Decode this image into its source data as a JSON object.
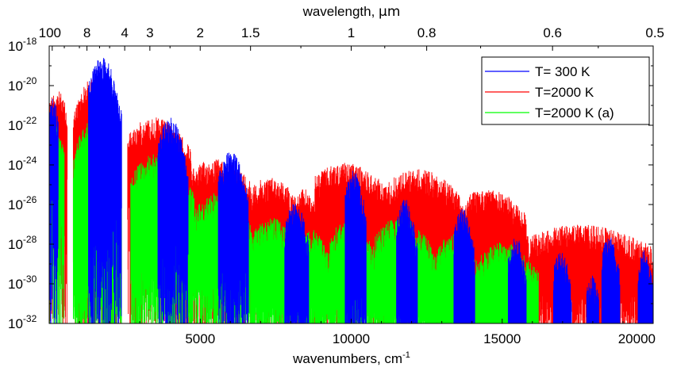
{
  "chart_data": {
    "type": "line",
    "xlabel": "wavenumbers, cm",
    "xlabel_superscript": "-1",
    "x2label_prefix": "wavelength, ",
    "x2label_unit": "μm",
    "xlim": [
      0,
      20000
    ],
    "ylim_exponent": [
      -32,
      -18
    ],
    "y_scale": "log",
    "x_ticks": [
      {
        "value": 5000,
        "label": "5000"
      },
      {
        "value": 10000,
        "label": "10000"
      },
      {
        "value": 15000,
        "label": "15000"
      },
      {
        "value": 20000,
        "label": "20000"
      }
    ],
    "x2_ticks": [
      {
        "wavelength": 100,
        "label": "100"
      },
      {
        "wavelength": 8,
        "label": "8"
      },
      {
        "wavelength": 4,
        "label": "4"
      },
      {
        "wavelength": 3,
        "label": "3"
      },
      {
        "wavelength": 2,
        "label": "2"
      },
      {
        "wavelength": 1.5,
        "label": "1.5"
      },
      {
        "wavelength": 1,
        "label": "1"
      },
      {
        "wavelength": 0.8,
        "label": "0.8"
      },
      {
        "wavelength": 0.6,
        "label": "0.6"
      },
      {
        "wavelength": 0.5,
        "label": "0.5"
      }
    ],
    "y_ticks": [
      {
        "exp": -18,
        "base": "10",
        "sup": "-18"
      },
      {
        "exp": -20,
        "base": "10",
        "sup": "-20"
      },
      {
        "exp": -22,
        "base": "10",
        "sup": "-22"
      },
      {
        "exp": -24,
        "base": "10",
        "sup": "-24"
      },
      {
        "exp": -26,
        "base": "10",
        "sup": "-26"
      },
      {
        "exp": -28,
        "base": "10",
        "sup": "-28"
      },
      {
        "exp": -30,
        "base": "10",
        "sup": "-30"
      },
      {
        "exp": -32,
        "base": "10",
        "sup": "-32"
      }
    ],
    "legend_position": "top-right",
    "series": [
      {
        "name": "T= 300 K",
        "color": "#0000ff",
        "bands": [
          [
            0,
            300,
            -20.6,
            -23.0
          ],
          [
            1300,
            2400,
            -18.5,
            -24.5
          ],
          [
            3600,
            4600,
            -21.6,
            -27.0
          ],
          [
            5600,
            6600,
            -23.3,
            -28.3
          ],
          [
            7800,
            8600,
            -25.8,
            -30.3
          ],
          [
            9800,
            10500,
            -24.2,
            -29.3
          ],
          [
            11500,
            12200,
            -25.7,
            -30.6
          ],
          [
            13400,
            14100,
            -26.2,
            -31.0
          ],
          [
            15200,
            15800,
            -27.6,
            -31.3
          ],
          [
            16700,
            17300,
            -28.4,
            -31.6
          ],
          [
            17800,
            18200,
            -29.5,
            -31.8
          ],
          [
            18300,
            18900,
            -27.6,
            -31.4
          ],
          [
            19500,
            20000,
            -28.3,
            -31.6
          ]
        ]
      },
      {
        "name": "T=2000 K",
        "color": "#ff0000",
        "bands": [
          [
            0,
            600,
            -20.2,
            -22.5
          ],
          [
            800,
            2400,
            -19.6,
            -26.8
          ],
          [
            2600,
            4700,
            -21.6,
            -25.0
          ],
          [
            4700,
            6700,
            -23.7,
            -26.0
          ],
          [
            6700,
            8200,
            -24.6,
            -26.8
          ],
          [
            8200,
            8800,
            -25.2,
            -27.0
          ],
          [
            8800,
            11200,
            -23.9,
            -26.5
          ],
          [
            11200,
            13600,
            -24.2,
            -26.8
          ],
          [
            13600,
            15800,
            -25.2,
            -27.8
          ],
          [
            15800,
            20000,
            -27.0,
            -29.5
          ]
        ]
      },
      {
        "name": "T=2000 K (a)",
        "color": "#00ff00",
        "bands": [
          [
            0,
            500,
            -22.0,
            -24.8
          ],
          [
            800,
            2400,
            -21.6,
            -29.0
          ],
          [
            2700,
            4800,
            -23.4,
            -28.0
          ],
          [
            4800,
            6700,
            -25.4,
            -28.8
          ],
          [
            6700,
            8200,
            -26.6,
            -30.0
          ],
          [
            8200,
            9300,
            -27.2,
            -30.2
          ],
          [
            9300,
            10800,
            -26.7,
            -30.2
          ],
          [
            10800,
            12800,
            -26.6,
            -30.5
          ],
          [
            12800,
            14200,
            -27.5,
            -30.8
          ],
          [
            14200,
            16200,
            -27.9,
            -31.2
          ]
        ]
      }
    ]
  }
}
